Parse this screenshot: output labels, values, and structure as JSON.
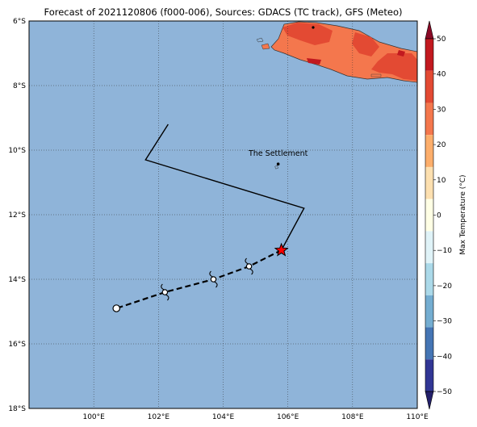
{
  "title": "Forecast of 2021120806 (f000-006), Sources: GDACS (TC track), GFS (Meteo)",
  "map": {
    "lon_range": [
      98,
      110
    ],
    "lat_range": [
      -18,
      -6
    ],
    "x_ticks": [
      "100°E",
      "102°E",
      "104°E",
      "106°E",
      "108°E",
      "110°E"
    ],
    "y_ticks": [
      "6°S",
      "8°S",
      "10°S",
      "12°S",
      "14°S",
      "16°S",
      "18°S"
    ],
    "ocean_color": "#8fb4d9",
    "grid": "dotted"
  },
  "place": {
    "name": "The Settlement",
    "lon": 105.7,
    "lat": -10.43
  },
  "track": {
    "past": [
      [
        106.5,
        -11.8
      ],
      [
        101.6,
        -10.3
      ],
      [
        102.3,
        -9.2
      ]
    ],
    "current_position": [
      105.8,
      -13.1
    ],
    "forecast": [
      [
        105.8,
        -13.1
      ],
      [
        104.8,
        -13.6
      ],
      [
        103.7,
        -14.0
      ],
      [
        102.2,
        -14.4
      ],
      [
        100.7,
        -14.9
      ]
    ],
    "cyclone_symbols": [
      [
        104.8,
        -13.6
      ],
      [
        103.7,
        -14.0
      ],
      [
        102.2,
        -14.4
      ]
    ],
    "open_circle": [
      100.7,
      -14.9
    ],
    "current_marker_color": "#ff0000"
  },
  "colorbar": {
    "label": "Max Temperature (°C)",
    "ticks": [
      "50",
      "40",
      "30",
      "20",
      "10",
      "0",
      "−10",
      "−20",
      "−30",
      "−40",
      "−50"
    ],
    "colors": [
      "#8b0a26",
      "#c2191f",
      "#e34a33",
      "#f4774d",
      "#fdae6b",
      "#fde0b0",
      "#ffffe5",
      "#e0f3f8",
      "#abd9e9",
      "#74add1",
      "#4575b4",
      "#313695",
      "#24206b"
    ]
  }
}
